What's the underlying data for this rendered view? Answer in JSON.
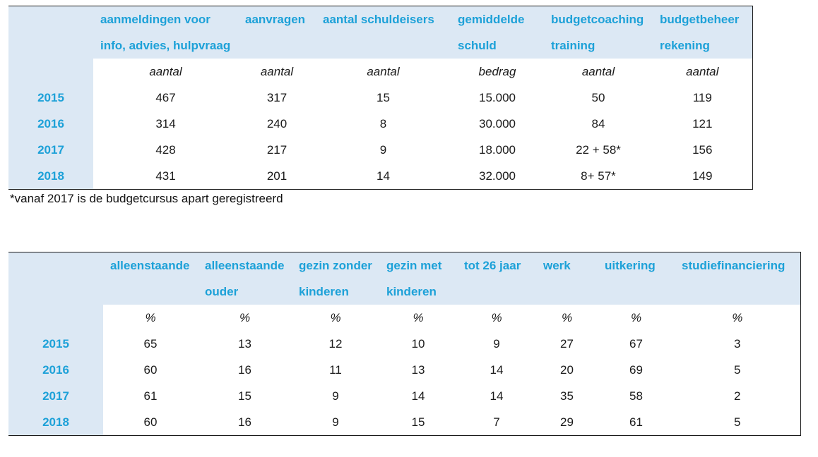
{
  "table1": {
    "headers": [
      [
        "aanmeldingen voor",
        "info, advies, hulpvraag"
      ],
      [
        "aanvragen",
        ""
      ],
      [
        "aantal schuldeisers",
        ""
      ],
      [
        "gemiddelde",
        "schuld"
      ],
      [
        "budgetcoaching",
        "training"
      ],
      [
        "budgetbeheer",
        "rekening"
      ]
    ],
    "units": [
      "aantal",
      "aantal",
      "aantal",
      "bedrag",
      "aantal",
      "aantal"
    ],
    "rows": [
      {
        "year": "2015",
        "values": [
          "467",
          "317",
          "15",
          "15.000",
          "50",
          "119"
        ]
      },
      {
        "year": "2016",
        "values": [
          "314",
          "240",
          "8",
          "30.000",
          "84",
          "121"
        ]
      },
      {
        "year": "2017",
        "values": [
          "428",
          "217",
          "9",
          "18.000",
          "22 + 58*",
          "156"
        ]
      },
      {
        "year": "2018",
        "values": [
          "431",
          "201",
          "14",
          "32.000",
          "8+ 57*",
          "149"
        ]
      }
    ]
  },
  "footnote": "*vanaf 2017 is de budgetcursus apart geregistreerd",
  "table2": {
    "headers": [
      [
        "alleenstaande",
        ""
      ],
      [
        "alleenstaande",
        "ouder"
      ],
      [
        "gezin zonder",
        "kinderen"
      ],
      [
        "gezin met",
        "kinderen"
      ],
      [
        "tot 26 jaar",
        ""
      ],
      [
        "werk",
        ""
      ],
      [
        "uitkering",
        ""
      ],
      [
        "studiefinanciering",
        ""
      ]
    ],
    "units": [
      "%",
      "%",
      "%",
      "%",
      "%",
      "%",
      "%",
      "%"
    ],
    "rows": [
      {
        "year": "2015",
        "values": [
          "65",
          "13",
          "12",
          "10",
          "9",
          "27",
          "67",
          "3"
        ]
      },
      {
        "year": "2016",
        "values": [
          "60",
          "16",
          "11",
          "13",
          "14",
          "20",
          "69",
          "5"
        ]
      },
      {
        "year": "2017",
        "values": [
          "61",
          "15",
          "9",
          "14",
          "14",
          "35",
          "58",
          "2"
        ]
      },
      {
        "year": "2018",
        "values": [
          "60",
          "16",
          "9",
          "15",
          "7",
          "29",
          "61",
          "5"
        ]
      }
    ]
  },
  "colors": {
    "header_bg": "#dce8f4",
    "accent": "#1da1d8",
    "text": "#1a1a1a"
  }
}
